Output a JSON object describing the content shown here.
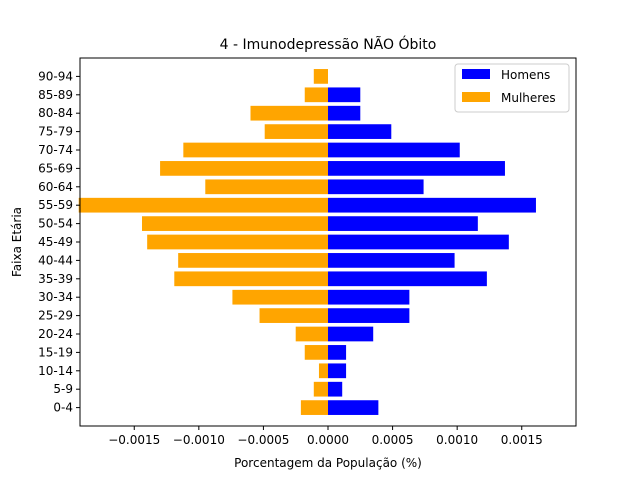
{
  "chart_data": {
    "type": "bar",
    "orientation": "horizontal",
    "title": "4 - Imunodepressão NÃO Óbito",
    "xlabel": "Porcentagem da População (%)",
    "ylabel": "Faixa Etária",
    "xlim": [
      -0.00192,
      0.00192
    ],
    "x_ticks": [
      -0.0015,
      -0.001,
      -0.0005,
      0.0,
      0.0005,
      0.001,
      0.0015
    ],
    "x_tick_labels": [
      "−0.0015",
      "−0.0010",
      "−0.0005",
      "0.0000",
      "0.0005",
      "0.0010",
      "0.0015"
    ],
    "categories": [
      "0-4",
      "5-9",
      "10-14",
      "15-19",
      "20-24",
      "25-29",
      "30-34",
      "35-39",
      "40-44",
      "45-49",
      "50-54",
      "55-59",
      "60-64",
      "65-69",
      "70-74",
      "75-79",
      "80-84",
      "85-89",
      "90-94"
    ],
    "series": [
      {
        "name": "Homens",
        "color": "#0000ff",
        "values": [
          0.00039,
          0.00011,
          0.00014,
          0.00014,
          0.00035,
          0.00063,
          0.00063,
          0.00123,
          0.00098,
          0.0014,
          0.00116,
          0.00161,
          0.00074,
          0.00137,
          0.00102,
          0.00049,
          0.00025,
          0.00025,
          0.0
        ]
      },
      {
        "name": "Mulheres",
        "color": "#ffa500",
        "values": [
          -0.00021,
          -0.00011,
          -7e-05,
          -0.00018,
          -0.00025,
          -0.00053,
          -0.00074,
          -0.00119,
          -0.00116,
          -0.0014,
          -0.00144,
          -0.00193,
          -0.00095,
          -0.0013,
          -0.00112,
          -0.00049,
          -0.0006,
          -0.00018,
          -0.00011
        ]
      }
    ],
    "legend_position": "upper right",
    "grid": false
  }
}
